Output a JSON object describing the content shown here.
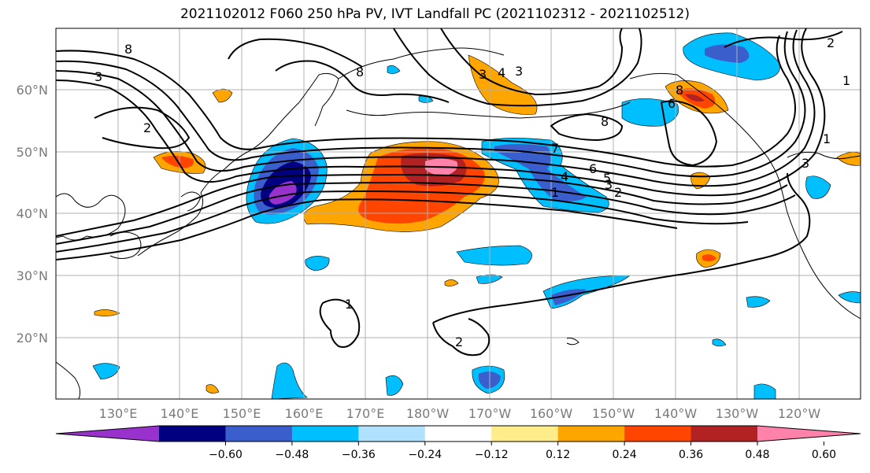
{
  "title": "2021102012 F060 250 hPa PV, IVT Landfall PC (2021102312 - 2021102512)",
  "lat_labels": [
    "60°N",
    "50°N",
    "40°N",
    "30°N",
    "20°N"
  ],
  "lon_labels": [
    "130°E",
    "140°E",
    "150°E",
    "160°E",
    "170°E",
    "180°W",
    "170°W",
    "160°W",
    "150°W",
    "140°W",
    "130°W",
    "120°W"
  ],
  "colorbar": {
    "ticks": [
      "−0.60",
      "−0.48",
      "−0.36",
      "−0.24",
      "−0.12",
      "0.12",
      "0.24",
      "0.36",
      "0.48",
      "0.60"
    ],
    "colors": [
      "#9932CC",
      "#000080",
      "#3A5FCD",
      "#00BFFF",
      "#B0E2FF",
      "#FFFFFF",
      "#FFEC8B",
      "#FFA500",
      "#FF4500",
      "#B22222",
      "#FF82AB"
    ]
  },
  "contour_labels": [
    "8",
    "8",
    "3",
    "2",
    "3",
    "4",
    "3",
    "8",
    "8",
    "7",
    "6",
    "5",
    "4",
    "3",
    "2",
    "1",
    "1",
    "2",
    "1",
    "2",
    "1",
    "3",
    "6"
  ]
}
